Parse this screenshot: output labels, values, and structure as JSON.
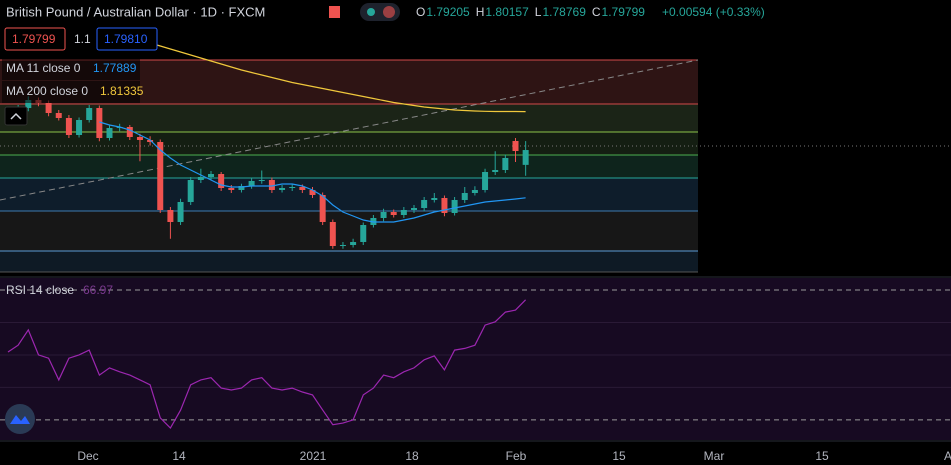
{
  "header": {
    "title": "British Pound / Australian Dollar · 1D · FXCM",
    "ohlc_labels": [
      "O",
      "H",
      "L",
      "C"
    ],
    "change": "+0.00594 (+0.33%)",
    "bid": "1.79799",
    "spread": "1.1",
    "ask": "1.79810"
  },
  "chart_data": {
    "type": "candlestick",
    "ylim": [
      1.7492,
      1.858
    ],
    "up_color": "#26a69a",
    "down_color": "#ef5350",
    "open": [
      1.81,
      1.8132,
      1.8148,
      1.818,
      1.8168,
      1.8128,
      1.8108,
      1.804,
      1.81,
      1.8148,
      1.8028,
      1.8068,
      1.8072,
      1.8032,
      1.802,
      1.8012,
      1.774,
      1.7692,
      1.7772,
      1.786,
      1.7872,
      1.7884,
      1.7828,
      1.782,
      1.7836,
      1.7856,
      1.786,
      1.782,
      1.7828,
      1.7832,
      1.782,
      1.78,
      1.7692,
      1.7596,
      1.76,
      1.7612,
      1.768,
      1.7708,
      1.7732,
      1.772,
      1.774,
      1.7748,
      1.778,
      1.7788,
      1.7728,
      1.778,
      1.7808,
      1.782,
      1.7892,
      1.79,
      1.8016,
      1.79205
    ],
    "high": [
      1.8145,
      1.816,
      1.8195,
      1.819,
      1.8178,
      1.814,
      1.812,
      1.811,
      1.816,
      1.8158,
      1.808,
      1.8085,
      1.808,
      1.8045,
      1.8035,
      1.8022,
      1.7752,
      1.7785,
      1.7872,
      1.7905,
      1.7896,
      1.7892,
      1.784,
      1.7845,
      1.7868,
      1.7898,
      1.787,
      1.784,
      1.7845,
      1.7842,
      1.7832,
      1.781,
      1.7702,
      1.7612,
      1.7625,
      1.769,
      1.772,
      1.7745,
      1.7742,
      1.7752,
      1.776,
      1.7792,
      1.7808,
      1.7798,
      1.7792,
      1.7832,
      1.7835,
      1.7905,
      1.7975,
      1.7962,
      1.8028,
      1.80157
    ],
    "low": [
      1.8088,
      1.812,
      1.8135,
      1.8155,
      1.8115,
      1.8098,
      1.8028,
      1.803,
      1.809,
      1.8015,
      1.8018,
      1.8055,
      1.802,
      1.7935,
      1.7998,
      1.7728,
      1.7625,
      1.768,
      1.776,
      1.7848,
      1.786,
      1.7816,
      1.7808,
      1.781,
      1.7825,
      1.7845,
      1.7808,
      1.781,
      1.7816,
      1.7808,
      1.7788,
      1.768,
      1.7585,
      1.7585,
      1.759,
      1.76,
      1.767,
      1.7695,
      1.771,
      1.7708,
      1.7728,
      1.7735,
      1.777,
      1.7715,
      1.7718,
      1.7768,
      1.7798,
      1.781,
      1.788,
      1.7888,
      1.7932,
      1.78769
    ],
    "close": [
      1.8132,
      1.8148,
      1.818,
      1.8168,
      1.8128,
      1.8108,
      1.804,
      1.81,
      1.8148,
      1.8028,
      1.8068,
      1.8072,
      1.8032,
      1.802,
      1.8012,
      1.774,
      1.7692,
      1.7772,
      1.786,
      1.7872,
      1.7884,
      1.7828,
      1.782,
      1.7836,
      1.7856,
      1.786,
      1.782,
      1.7828,
      1.7832,
      1.782,
      1.78,
      1.7692,
      1.7596,
      1.76,
      1.7612,
      1.768,
      1.7708,
      1.7732,
      1.772,
      1.774,
      1.7748,
      1.778,
      1.7788,
      1.7728,
      1.778,
      1.7808,
      1.782,
      1.7892,
      1.79,
      1.7948,
      1.7976,
      1.79799
    ],
    "series": [
      {
        "name": "MA 11 close 0",
        "color": "#2196f3",
        "values": [
          null,
          null,
          null,
          null,
          null,
          null,
          null,
          null,
          null,
          1.8092,
          1.808,
          1.8072,
          1.806,
          1.804,
          1.802,
          1.798,
          1.7948,
          1.792,
          1.79,
          1.788,
          1.786,
          1.784,
          1.7832,
          1.7832,
          1.7836,
          1.7836,
          1.7836,
          1.7844,
          1.7844,
          1.7836,
          1.782,
          1.7796,
          1.776,
          1.7732,
          1.7716,
          1.77,
          1.7692,
          1.7692,
          1.7692,
          1.77,
          1.7708,
          1.772,
          1.7732,
          1.774,
          1.7748,
          1.7756,
          1.7764,
          1.7772,
          1.7776,
          1.778,
          1.7784,
          1.77889
        ]
      },
      {
        "name": "MA 200 close 0",
        "color": "#f0c83c",
        "values": [
          null,
          null,
          null,
          null,
          null,
          null,
          null,
          null,
          null,
          null,
          null,
          null,
          null,
          null,
          1.8408,
          1.8396,
          1.8384,
          1.8372,
          1.836,
          1.8348,
          1.8336,
          1.8324,
          1.8312,
          1.83,
          1.829,
          1.828,
          1.827,
          1.826,
          1.825,
          1.8242,
          1.8234,
          1.8226,
          1.8218,
          1.821,
          1.8202,
          1.8194,
          1.8186,
          1.8178,
          1.817,
          1.8164,
          1.8158,
          1.8152,
          1.8148,
          1.8144,
          1.814,
          1.8138,
          1.8136,
          1.8135,
          1.8134,
          1.8134,
          1.8134,
          1.81335
        ]
      }
    ],
    "rsi": {
      "name": "RSI 14 close",
      "color": "#9c27b0",
      "ylim": [
        23.8,
        73.7
      ],
      "levels": [
        70,
        30
      ],
      "values": [
        50.9,
        53,
        57.7,
        50,
        49,
        42.3,
        49,
        50,
        51.5,
        43.8,
        46,
        44.8,
        43.8,
        42.3,
        40.8,
        30.6,
        27.5,
        33,
        40.8,
        42.3,
        43,
        39.8,
        39.2,
        39.8,
        42.3,
        43,
        39.8,
        39.2,
        39.8,
        38.6,
        37.7,
        33,
        28.5,
        29,
        30,
        37.7,
        39.8,
        43.8,
        43,
        44.8,
        46,
        48.5,
        49.7,
        45.4,
        51.5,
        52,
        53,
        59.2,
        60.2,
        63.2,
        63.8,
        66.97
      ]
    },
    "x_labels": [
      "Dec",
      "14",
      "2021",
      "18",
      "Feb",
      "15",
      "Mar",
      "15",
      "A"
    ]
  }
}
